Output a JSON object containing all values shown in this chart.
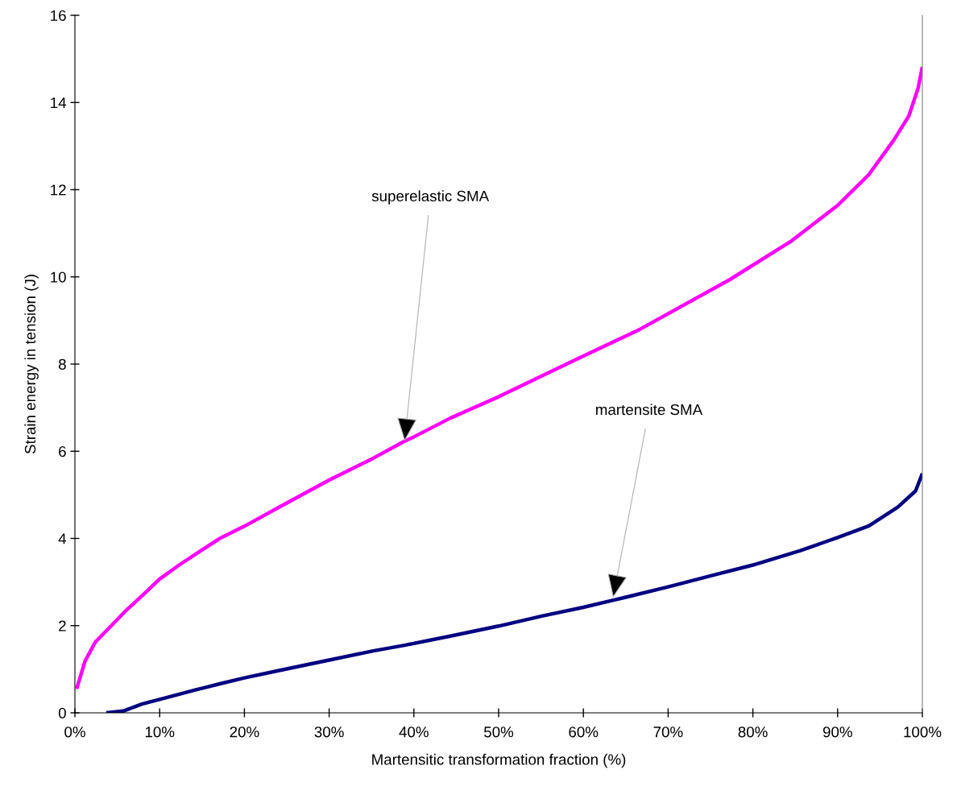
{
  "chart_data": {
    "type": "line",
    "xlabel": "Martensitic transformation fraction (%)",
    "ylabel": "Strain energy in tension (J)",
    "xlim": [
      0,
      100
    ],
    "ylim": [
      0,
      16
    ],
    "xticks": [
      {
        "value": 0,
        "label": "0%"
      },
      {
        "value": 10,
        "label": "10%"
      },
      {
        "value": 20,
        "label": "20%"
      },
      {
        "value": 30,
        "label": "30%"
      },
      {
        "value": 40,
        "label": "40%"
      },
      {
        "value": 50,
        "label": "50%"
      },
      {
        "value": 60,
        "label": "60%"
      },
      {
        "value": 70,
        "label": "70%"
      },
      {
        "value": 80,
        "label": "80%"
      },
      {
        "value": 90,
        "label": "90%"
      },
      {
        "value": 100,
        "label": "100%"
      }
    ],
    "yticks": [
      0,
      2,
      4,
      6,
      8,
      10,
      12,
      14,
      16
    ],
    "grid": false,
    "marker": "none",
    "line_style": "solid",
    "series": [
      {
        "color": "#ff00ff",
        "x": [
          0.2,
          1.2,
          2.4,
          4.3,
          6.1,
          7.9,
          10,
          12.3,
          14.8,
          17,
          20,
          24.3,
          30,
          35.2,
          38.9,
          40,
          44.3,
          50,
          59.1,
          66.4,
          77.3,
          84.6,
          90,
          93.7,
          96.6,
          98.4,
          99.5,
          100
        ],
        "values": [
          0.55,
          1.19,
          1.62,
          2.0,
          2.36,
          2.68,
          3.07,
          3.39,
          3.71,
          3.99,
          4.28,
          4.74,
          5.34,
          5.84,
          6.23,
          6.33,
          6.76,
          7.25,
          8.1,
          8.77,
          9.94,
          10.83,
          11.64,
          12.35,
          13.13,
          13.69,
          14.33,
          14.82
        ]
      },
      {
        "color": "#000080",
        "x": [
          3.7,
          5.7,
          7.9,
          10.8,
          14.1,
          17,
          20,
          24.3,
          30,
          35.2,
          38.9,
          44.3,
          50,
          55.1,
          60,
          65.2,
          70,
          75.4,
          80,
          85.6,
          90,
          93.7,
          97.1,
          99.2,
          100
        ],
        "values": [
          0,
          0.04,
          0.2,
          0.35,
          0.52,
          0.66,
          0.8,
          0.98,
          1.21,
          1.42,
          1.55,
          1.76,
          1.99,
          2.22,
          2.42,
          2.66,
          2.89,
          3.16,
          3.39,
          3.72,
          4.02,
          4.29,
          4.72,
          5.09,
          5.49
        ]
      }
    ],
    "annotations": [
      {
        "text": "superelastic SMA",
        "x": 38.9,
        "y": 6.23
      },
      {
        "text": "martensite SMA",
        "x": 63.5,
        "y": 2.64
      }
    ]
  }
}
